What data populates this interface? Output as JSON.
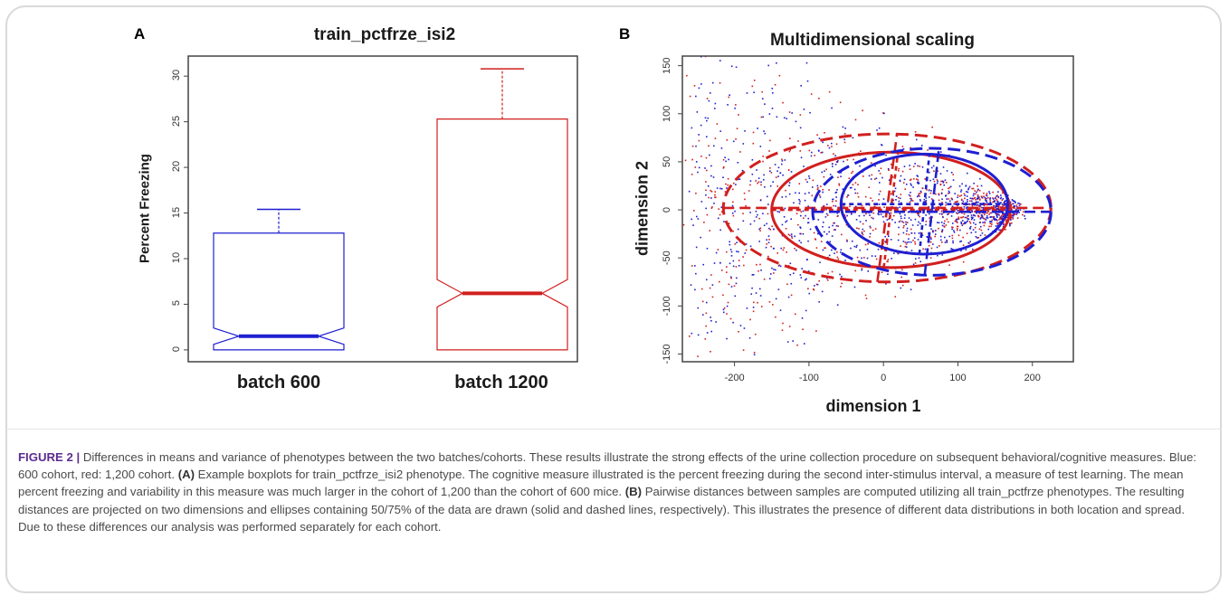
{
  "panel_a": {
    "letter": "A",
    "title": "train_pctfrze_isi2",
    "ylabel": "Percent Freezing",
    "yticks": [
      "0",
      "5",
      "10",
      "15",
      "20",
      "25",
      "30"
    ],
    "categories": [
      "batch 600",
      "batch 1200"
    ]
  },
  "panel_b": {
    "letter": "B",
    "title": "Multidimensional scaling",
    "xlabel": "dimension 1",
    "ylabel": "dimension 2",
    "xticks": [
      "-200",
      "-100",
      "0",
      "100",
      "200"
    ],
    "yticks": [
      "-150",
      "-100",
      "-50",
      "0",
      "50",
      "100",
      "150"
    ]
  },
  "colors": {
    "blue": "#1f1fd0",
    "red": "#d11f1f",
    "caption_label": "#5b2d8e"
  },
  "caption": {
    "label": "FIGURE 2 |",
    "sentence1": " Differences in means and variance of phenotypes between the two batches/cohorts. These results illustrate the strong effects of the urine collection procedure on subsequent behavioral/cognitive measures. Blue: 600 cohort, red: 1,200 cohort. ",
    "label_a": "(A)",
    "text_a": " Example boxplots for train_pctfrze_isi2 phenotype. The cognitive measure illustrated is the percent freezing during the second inter-stimulus interval, a measure of test learning. The mean percent freezing and variability in this measure was much larger in the cohort of 1,200 than the cohort of 600 mice. ",
    "label_b": "(B)",
    "text_b": " Pairwise distances between samples are computed utilizing all train_pctfrze phenotypes. The resulting distances are projected on two dimensions and ellipses containing 50/75% of the data are drawn (solid and dashed lines, respectively). This illustrates the presence of different data distributions in both location and spread. Due to these differences our analysis was performed separately for each cohort."
  },
  "chart_data": [
    {
      "type": "box",
      "title": "train_pctfrze_isi2",
      "ylabel": "Percent Freezing",
      "xlabel": "",
      "ylim": [
        0,
        32
      ],
      "categories": [
        "batch 600",
        "batch 1200"
      ],
      "boxes": [
        {
          "name": "batch 600",
          "color": "#1f1fd0",
          "min": 0,
          "q1": 0,
          "median": 1.5,
          "q3": 12.8,
          "max": 15.4,
          "notch_low": 0.6,
          "notch_high": 2.4
        },
        {
          "name": "batch 1200",
          "color": "#d11f1f",
          "min": 0,
          "q1": 0,
          "median": 6.2,
          "q3": 25.3,
          "max": 30.8,
          "notch_low": 4.7,
          "notch_high": 7.7
        }
      ]
    },
    {
      "type": "scatter",
      "title": "Multidimensional scaling",
      "xlabel": "dimension 1",
      "ylabel": "dimension 2",
      "xlim": [
        -270,
        255
      ],
      "ylim": [
        -158,
        160
      ],
      "series_colors": [
        "#1f1fd0",
        "#d11f1f"
      ],
      "ellipses": [
        {
          "series": "red",
          "coverage": "50%",
          "style": "solid",
          "cx": 10,
          "cy": 0,
          "rx": 160,
          "ry": 60
        },
        {
          "series": "red",
          "coverage": "75%",
          "style": "dashed",
          "cx": 5,
          "cy": 2,
          "rx": 220,
          "ry": 77
        },
        {
          "series": "blue",
          "coverage": "50%",
          "style": "solid",
          "cx": 55,
          "cy": 6,
          "rx": 112,
          "ry": 52
        },
        {
          "series": "blue",
          "coverage": "75%",
          "style": "dashed",
          "cx": 65,
          "cy": -2,
          "rx": 160,
          "ry": 66
        }
      ],
      "note": "point cloud of ~1800 samples concentrated near (150, 0) and spreading leftward"
    }
  ]
}
